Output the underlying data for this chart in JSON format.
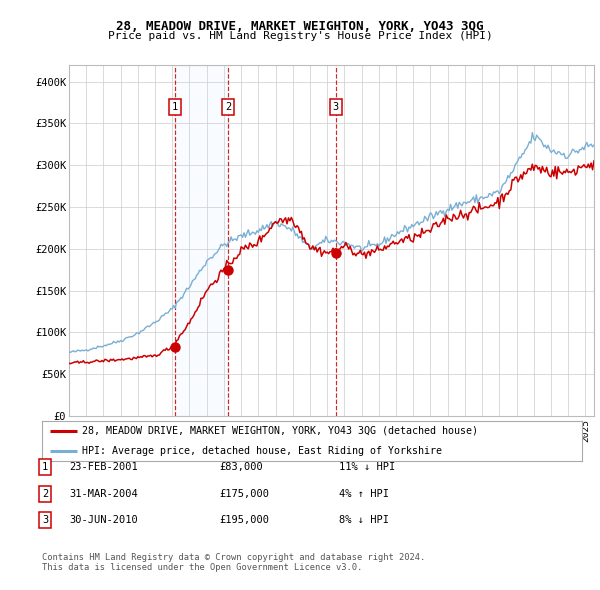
{
  "title1": "28, MEADOW DRIVE, MARKET WEIGHTON, YORK, YO43 3QG",
  "title2": "Price paid vs. HM Land Registry's House Price Index (HPI)",
  "sale_dates_num": [
    2001.14,
    2004.25,
    2010.5
  ],
  "sale_prices": [
    83000,
    175000,
    195000
  ],
  "sale_labels": [
    "1",
    "2",
    "3"
  ],
  "sale_info": [
    {
      "label": "1",
      "date": "23-FEB-2001",
      "price": "£83,000",
      "hpi": "11% ↓ HPI"
    },
    {
      "label": "2",
      "date": "31-MAR-2004",
      "price": "£175,000",
      "hpi": "4% ↑ HPI"
    },
    {
      "label": "3",
      "date": "30-JUN-2010",
      "price": "£195,000",
      "hpi": "8% ↓ HPI"
    }
  ],
  "red_line_color": "#cc0000",
  "blue_line_color": "#7aafd4",
  "shade_color": "#ddeeff",
  "point_color": "#cc0000",
  "grid_color": "#cccccc",
  "bg_color": "#ffffff",
  "ylim": [
    0,
    420000
  ],
  "yticks": [
    0,
    50000,
    100000,
    150000,
    200000,
    250000,
    300000,
    350000,
    400000
  ],
  "ytick_labels": [
    "£0",
    "£50K",
    "£100K",
    "£150K",
    "£200K",
    "£250K",
    "£300K",
    "£350K",
    "£400K"
  ],
  "legend_red": "28, MEADOW DRIVE, MARKET WEIGHTON, YORK, YO43 3QG (detached house)",
  "legend_blue": "HPI: Average price, detached house, East Riding of Yorkshire",
  "footnote": "Contains HM Land Registry data © Crown copyright and database right 2024.\nThis data is licensed under the Open Government Licence v3.0."
}
